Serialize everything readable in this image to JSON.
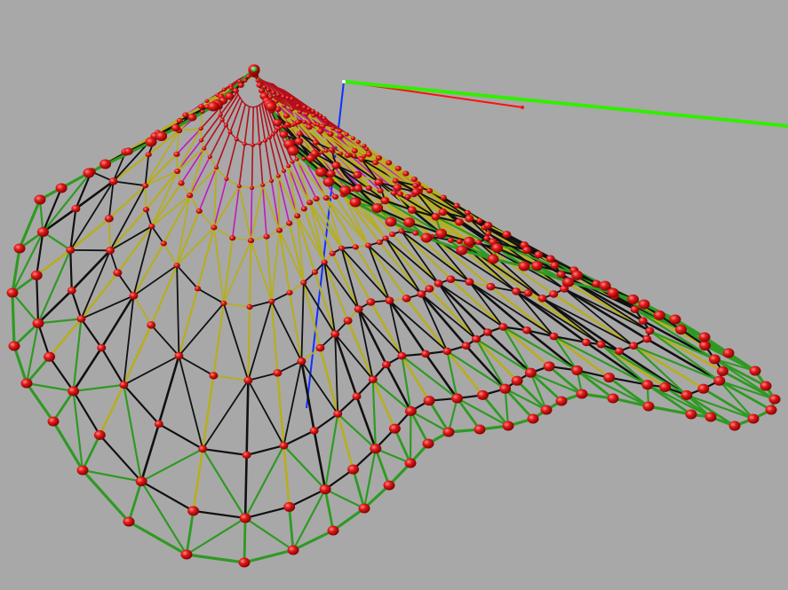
{
  "viewport": {
    "background_color": "#a8a8a8"
  },
  "axes": [
    {
      "name": "x-axis",
      "color": "#ff1010"
    },
    {
      "name": "y-axis",
      "color": "#33ee00"
    },
    {
      "name": "z-axis",
      "color": "#1030ff"
    }
  ],
  "structure": {
    "type": "tensile-membrane-cone",
    "member_colors": {
      "cable": "#111111",
      "membrane_edge": "#2e9a22",
      "yellow_strut": "#b7ae1e",
      "magenta_strut": "#c21ab8",
      "top_strut": "#b3101c"
    },
    "node_color": "#e01a1a",
    "apex_color": "#22cc22"
  }
}
